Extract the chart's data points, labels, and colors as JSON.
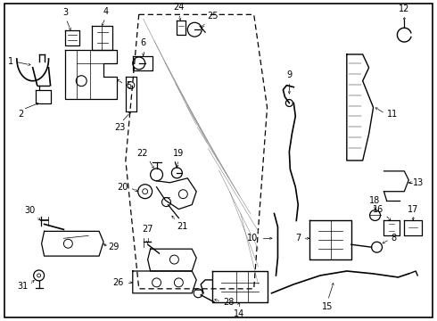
{
  "background_color": "#ffffff",
  "border_color": "#000000",
  "fig_width": 4.9,
  "fig_height": 3.6,
  "dpi": 100,
  "label_fontsize": 7.0,
  "line_color": "#000000"
}
